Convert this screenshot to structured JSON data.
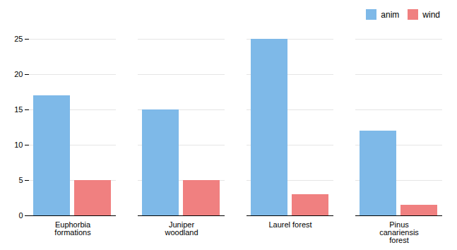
{
  "chart_data": {
    "type": "bar",
    "categories": [
      "Euphorbia\nformations",
      "Juniper\nwoodland",
      "Laurel forest",
      "Pinus\ncanariensis\nforest"
    ],
    "series": [
      {
        "name": "anim",
        "color": "#7EB9E8",
        "values": [
          17,
          15,
          25,
          12
        ]
      },
      {
        "name": "wind",
        "color": "#F08080",
        "values": [
          5,
          5,
          3,
          1.5
        ]
      }
    ],
    "ylim": [
      0,
      25
    ],
    "yticks": [
      0,
      5,
      10,
      15,
      20,
      25
    ],
    "grid": true,
    "legend": "upper right"
  }
}
